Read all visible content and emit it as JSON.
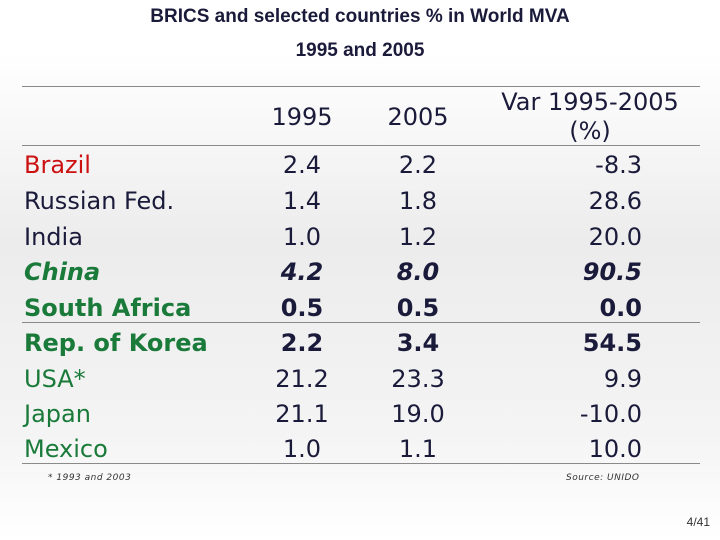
{
  "title": "BRICS and selected countries % in World MVA",
  "subtitle": "1995 and 2005",
  "table": {
    "headers": [
      "1995",
      "2005",
      "Var 1995-2005 (%)"
    ],
    "rows": [
      {
        "country": "Brazil",
        "v1995": "2.4",
        "v2005": "2.2",
        "var": "-8.3",
        "color": "#cc1111",
        "bold": false,
        "italic": false
      },
      {
        "country": "Russian Fed.",
        "v1995": "1.4",
        "v2005": "1.8",
        "var": "28.6",
        "color": "#1a1a3a",
        "bold": false,
        "italic": false
      },
      {
        "country": "India",
        "v1995": "1.0",
        "v2005": "1.2",
        "var": "20.0",
        "color": "#1a1a3a",
        "bold": false,
        "italic": false
      },
      {
        "country": "China",
        "v1995": "4.2",
        "v2005": "8.0",
        "var": "90.5",
        "color": "#1a7a3a",
        "bold": true,
        "italic": true
      },
      {
        "country": "South Africa",
        "v1995": "0.5",
        "v2005": "0.5",
        "var": "0.0",
        "color": "#1a7a3a",
        "bold": true,
        "italic": false
      },
      {
        "country": "Rep. of Korea",
        "v1995": "2.2",
        "v2005": "3.4",
        "var": "54.5",
        "color": "#1a7a3a",
        "bold": true,
        "italic": false
      },
      {
        "country": "USA*",
        "v1995": "21.2",
        "v2005": "23.3",
        "var": "9.9",
        "color": "#1a7a3a",
        "bold": false,
        "italic": false
      },
      {
        "country": "Japan",
        "v1995": "21.1",
        "v2005": "19.0",
        "var": "-10.0",
        "color": "#1a7a3a",
        "bold": false,
        "italic": false
      },
      {
        "country": "Mexico",
        "v1995": "1.0",
        "v2005": "1.1",
        "var": "10.0",
        "color": "#1a7a3a",
        "bold": false,
        "italic": false
      }
    ]
  },
  "footnote": "* 1993 and 2003",
  "source": "Source: UNIDO",
  "page_number": "4/41"
}
